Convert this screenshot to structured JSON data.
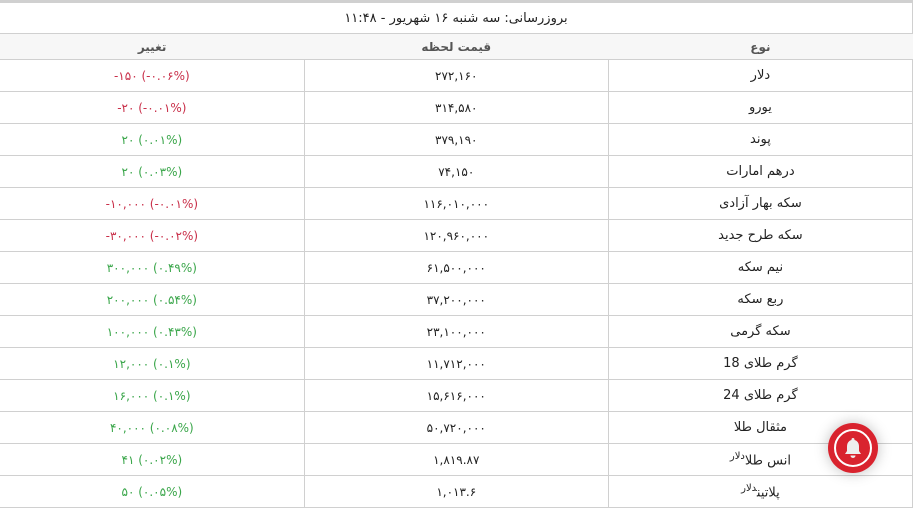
{
  "header": {
    "updated": "بروزرسانی: سه شنبه ۱۶ شهریور - ۱۱:۴۸"
  },
  "columns": {
    "type": "نوع",
    "price": "قیمت لحظه",
    "change": "تغییر"
  },
  "rows": [
    {
      "type": "دلار",
      "unit": "",
      "price": "۲۷۲,۱۶۰",
      "change": "-۱۵۰ (-۰.۰۶%)",
      "direction": "down"
    },
    {
      "type": "یورو",
      "unit": "",
      "price": "۳۱۴,۵۸۰",
      "change": "-۲۰ (-۰.۰۱%)",
      "direction": "down"
    },
    {
      "type": "پوند",
      "unit": "",
      "price": "۳۷۹,۱۹۰",
      "change": "۲۰ (۰.۰۱%)",
      "direction": "up"
    },
    {
      "type": "درهم امارات",
      "unit": "",
      "price": "۷۴,۱۵۰",
      "change": "۲۰ (۰.۰۳%)",
      "direction": "up"
    },
    {
      "type": "سکه بهار آزادی",
      "unit": "",
      "price": "۱۱۶,۰۱۰,۰۰۰",
      "change": "-۱۰,۰۰۰ (-۰.۰۱%)",
      "direction": "down"
    },
    {
      "type": "سکه طرح جدید",
      "unit": "",
      "price": "۱۲۰,۹۶۰,۰۰۰",
      "change": "-۳۰,۰۰۰ (-۰.۰۲%)",
      "direction": "down"
    },
    {
      "type": "نیم سکه",
      "unit": "",
      "price": "۶۱,۵۰۰,۰۰۰",
      "change": "۳۰۰,۰۰۰ (۰.۴۹%)",
      "direction": "up"
    },
    {
      "type": "ربع سکه",
      "unit": "",
      "price": "۳۷,۲۰۰,۰۰۰",
      "change": "۲۰۰,۰۰۰ (۰.۵۴%)",
      "direction": "up"
    },
    {
      "type": "سکه گرمی",
      "unit": "",
      "price": "۲۳,۱۰۰,۰۰۰",
      "change": "۱۰۰,۰۰۰ (۰.۴۳%)",
      "direction": "up"
    },
    {
      "type": "گرم طلای 18",
      "unit": "",
      "price": "۱۱,۷۱۲,۰۰۰",
      "change": "۱۲,۰۰۰ (۰.۱%)",
      "direction": "up"
    },
    {
      "type": "گرم طلای 24",
      "unit": "",
      "price": "۱۵,۶۱۶,۰۰۰",
      "change": "۱۶,۰۰۰ (۰.۱%)",
      "direction": "up"
    },
    {
      "type": "مثقال طلا",
      "unit": "",
      "price": "۵۰,۷۲۰,۰۰۰",
      "change": "۴۰,۰۰۰ (۰.۰۸%)",
      "direction": "up"
    },
    {
      "type": "انس طلا",
      "unit": "دلار",
      "price": "۱,۸۱۹.۸۷",
      "change": "۴۱ (۰.۰۲%)",
      "direction": "up"
    },
    {
      "type": "پلاتین",
      "unit": "دلار",
      "price": "۱,۰۱۳.۶",
      "change": "۵۰ (۰.۰۵%)",
      "direction": "up"
    }
  ],
  "colors": {
    "negative": "#c9304a",
    "positive": "#3aa64a",
    "bell": "#d9232e"
  },
  "bell_button": {
    "icon": "bell-icon"
  }
}
